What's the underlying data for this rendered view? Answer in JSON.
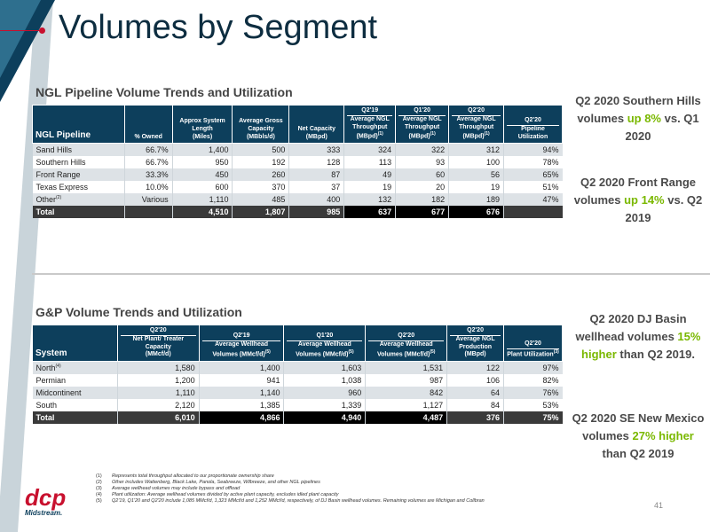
{
  "title": "Volumes by Segment",
  "ngl": {
    "section_title": "NGL Pipeline Volume Trends and Utilization",
    "headers": {
      "pipeline": "NGL Pipeline",
      "owned": "% Owned",
      "length": "Approx System Length",
      "length_unit": "(Miles)",
      "capacity": "Average Gross Capacity",
      "capacity_unit": "(MBbls/d)",
      "net_capacity": "Net Capacity",
      "net_capacity_unit": "(MBpd)",
      "q2_19": "Q2'19",
      "q1_20": "Q1'20",
      "q2_20": "Q2'20",
      "q2_20_b": "Q2'20",
      "throughput": "Average NGL Throughput",
      "throughput_unit": "(MBpd)",
      "footnote1": "(1)",
      "util": "Pipeline Utilization"
    },
    "rows": [
      {
        "name": "Sand Hills",
        "owned": "66.7%",
        "length": "1,400",
        "capacity": "500",
        "net": "333",
        "q2_19": "324",
        "q1_20": "322",
        "q2_20": "312",
        "util": "94%"
      },
      {
        "name": "Southern Hills",
        "owned": "66.7%",
        "length": "950",
        "capacity": "192",
        "net": "128",
        "q2_19": "113",
        "q1_20": "93",
        "q2_20": "100",
        "util": "78%"
      },
      {
        "name": "Front Range",
        "owned": "33.3%",
        "length": "450",
        "capacity": "260",
        "net": "87",
        "q2_19": "49",
        "q1_20": "60",
        "q2_20": "56",
        "util": "65%"
      },
      {
        "name": "Texas Express",
        "owned": "10.0%",
        "length": "600",
        "capacity": "370",
        "net": "37",
        "q2_19": "19",
        "q1_20": "20",
        "q2_20": "19",
        "util": "51%"
      },
      {
        "name": "Other",
        "name_sup": "(2)",
        "owned": "Various",
        "length": "1,110",
        "capacity": "485",
        "net": "400",
        "q2_19": "132",
        "q1_20": "182",
        "q2_20": "189",
        "util": "47%"
      }
    ],
    "total": {
      "name": "Total",
      "owned": "",
      "length": "4,510",
      "capacity": "1,807",
      "net": "985",
      "q2_19": "637",
      "q1_20": "677",
      "q2_20": "676",
      "util": ""
    }
  },
  "gp": {
    "section_title": "G&P Volume Trends and Utilization",
    "headers": {
      "system": "System",
      "h1_top": "Q2'20",
      "h1": "Net Plant/ Treater Capacity",
      "h1_unit": "(MMcf/d)",
      "h2_top": "Q2'19",
      "h2": "Average Wellhead Volumes (MMcf/d)",
      "h2_sup": "(5)",
      "h3_top": "Q1'20",
      "h3": "Average Wellhead Volumes (MMcf/d)",
      "h3_sup": "(5)",
      "h4_top": "Q2'20",
      "h4": "Average Wellhead Volumes (MMcf/d)",
      "h4_sup": "(5)",
      "h5_top": "Q2'20",
      "h5": "Average NGL Production",
      "h5_unit": "(MBpd)",
      "h6_top": "Q2'20",
      "h6": "Plant Utilization",
      "h6_sup": "(3)"
    },
    "rows": [
      {
        "name": "North",
        "name_sup": "(4)",
        "c1": "1,580",
        "c2": "1,400",
        "c3": "1,603",
        "c4": "1,531",
        "c5": "122",
        "c6": "97%"
      },
      {
        "name": "Permian",
        "c1": "1,200",
        "c2": "941",
        "c3": "1,038",
        "c4": "987",
        "c5": "106",
        "c6": "82%"
      },
      {
        "name": "Midcontinent",
        "c1": "1,110",
        "c2": "1,140",
        "c3": "960",
        "c4": "842",
        "c5": "64",
        "c6": "76%"
      },
      {
        "name": "South",
        "c1": "2,120",
        "c2": "1,385",
        "c3": "1,339",
        "c4": "1,127",
        "c5": "84",
        "c6": "53%"
      }
    ],
    "total": {
      "name": "Total",
      "c1": "6,010",
      "c2": "4,866",
      "c3": "4,940",
      "c4": "4,487",
      "c5": "376",
      "c6": "75%"
    }
  },
  "callouts": {
    "c1": {
      "a": "Q2 2020 Southern Hills volumes",
      "hl": "up 8%",
      "b": "vs. Q1 2020"
    },
    "c2": {
      "a": "Q2 2020 Front Range volumes",
      "hl": "up 14%",
      "b": "vs. Q2 2019"
    },
    "c3": {
      "a": "Q2 2020 DJ Basin wellhead volumes",
      "hl": "15% higher",
      "b": "than Q2 2019."
    },
    "c4": {
      "a": "Q2 2020 SE New Mexico volumes",
      "hl": "27% higher",
      "b": "than Q2 2019"
    }
  },
  "footnotes": [
    {
      "n": "(1)",
      "t": "Represents total throughput allocated to our proportionate ownership share"
    },
    {
      "n": "(2)",
      "t": "Other includes Wattenberg, Black Lake, Panola, Seabreeze, Wilbreeze, and other NGL pipelines"
    },
    {
      "n": "(3)",
      "t": "Average wellhead volumes may include bypass and offload"
    },
    {
      "n": "(4)",
      "t": "Plant utilization: Average wellhead volumes divided by active plant capacity, excludes idled plant capacity"
    },
    {
      "n": "(5)",
      "t": "Q2'19, Q1'20 and Q2'20 include 1,085 MMcf/d, 1,323 MMcf/d and 1,252 MMcf/d, respectively, of DJ Basin wellhead volumes. Remaining volumes are Michigan and Collbran"
    }
  ],
  "logo": {
    "word": "dcp",
    "sub": "Midstream."
  },
  "page_number": "41",
  "colors": {
    "navy": "#0d3f5c",
    "green": "#7ab800",
    "red": "#c8102e"
  }
}
